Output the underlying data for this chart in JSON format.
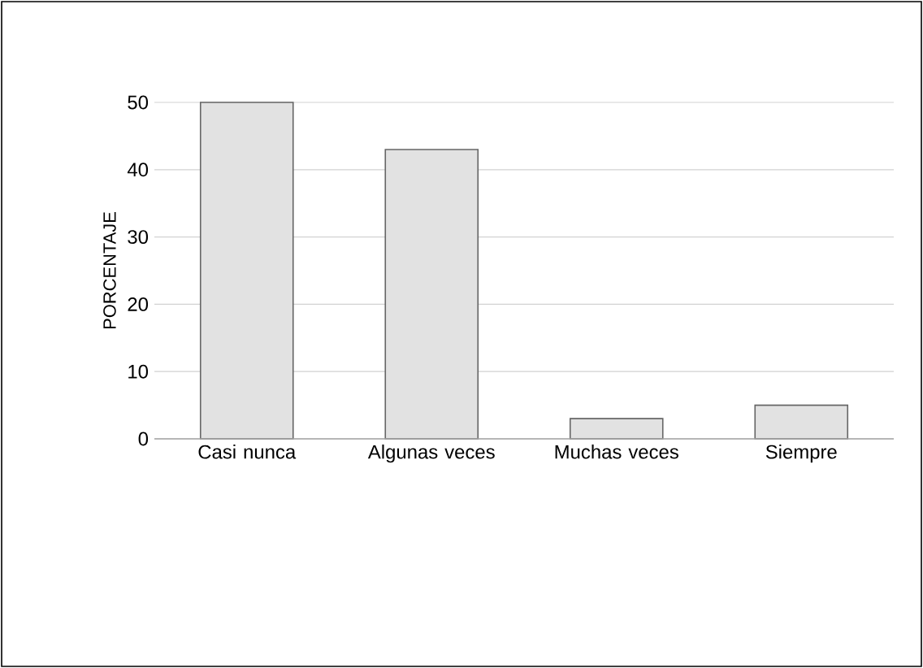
{
  "chart_data": {
    "type": "bar",
    "ylabel": "PORCENTAJE",
    "categories": [
      "Casi nunca",
      "Algunas veces",
      "Muchas veces",
      "Siempre"
    ],
    "values": [
      50,
      43,
      3,
      5
    ],
    "color": "#e2e2e2",
    "ylim": [
      0,
      50
    ],
    "yticks": [
      0,
      10,
      20,
      30,
      40,
      50
    ],
    "grid": "y"
  }
}
